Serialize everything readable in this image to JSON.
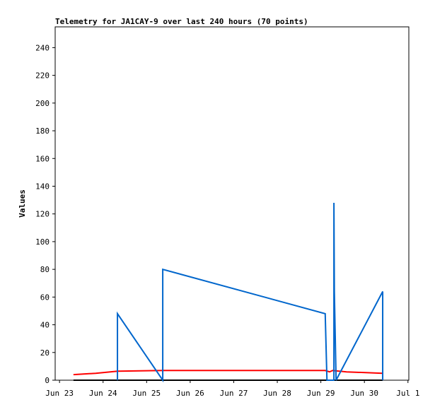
{
  "chart_data": {
    "type": "line",
    "title": "Telemetry for JA1CAY-9 over last 240 hours (70 points)",
    "y_label": "Values",
    "xlim": [
      -0.1,
      8.02
    ],
    "ylim": [
      0,
      255
    ],
    "yticks": [
      0,
      20,
      40,
      60,
      80,
      100,
      120,
      140,
      160,
      180,
      200,
      220,
      240
    ],
    "xticks": [
      {
        "value": 0,
        "label": "Jun 23"
      },
      {
        "value": 1,
        "label": "Jun 24"
      },
      {
        "value": 2,
        "label": "Jun 25"
      },
      {
        "value": 3,
        "label": "Jun 26"
      },
      {
        "value": 4,
        "label": "Jun 27"
      },
      {
        "value": 5,
        "label": "Jun 28"
      },
      {
        "value": 6,
        "label": "Jun 29"
      },
      {
        "value": 7,
        "label": "Jun 30"
      },
      {
        "value": 8,
        "label": "Jul 1"
      }
    ],
    "grid": false,
    "series": [
      {
        "color": "#000000",
        "x": [
          0.32,
          7.42
        ],
        "values": [
          0,
          0
        ]
      },
      {
        "color": "#ff0000",
        "x": [
          0.32,
          0.83,
          1.33,
          2.37,
          6.1,
          6.2,
          6.27,
          6.59,
          7.42
        ],
        "values": [
          4,
          5,
          6.5,
          7,
          7,
          6,
          7,
          6,
          5
        ]
      },
      {
        "color": "#0066cc",
        "x": [
          1.33,
          1.33,
          2.37,
          2.37,
          6.1,
          6.12,
          6.14,
          6.3,
          6.3,
          6.31,
          6.33,
          6.35,
          7.42,
          7.42
        ],
        "values": [
          0,
          48,
          0,
          80,
          48,
          24,
          0,
          0,
          128,
          64,
          32,
          0,
          64,
          0
        ]
      }
    ]
  }
}
